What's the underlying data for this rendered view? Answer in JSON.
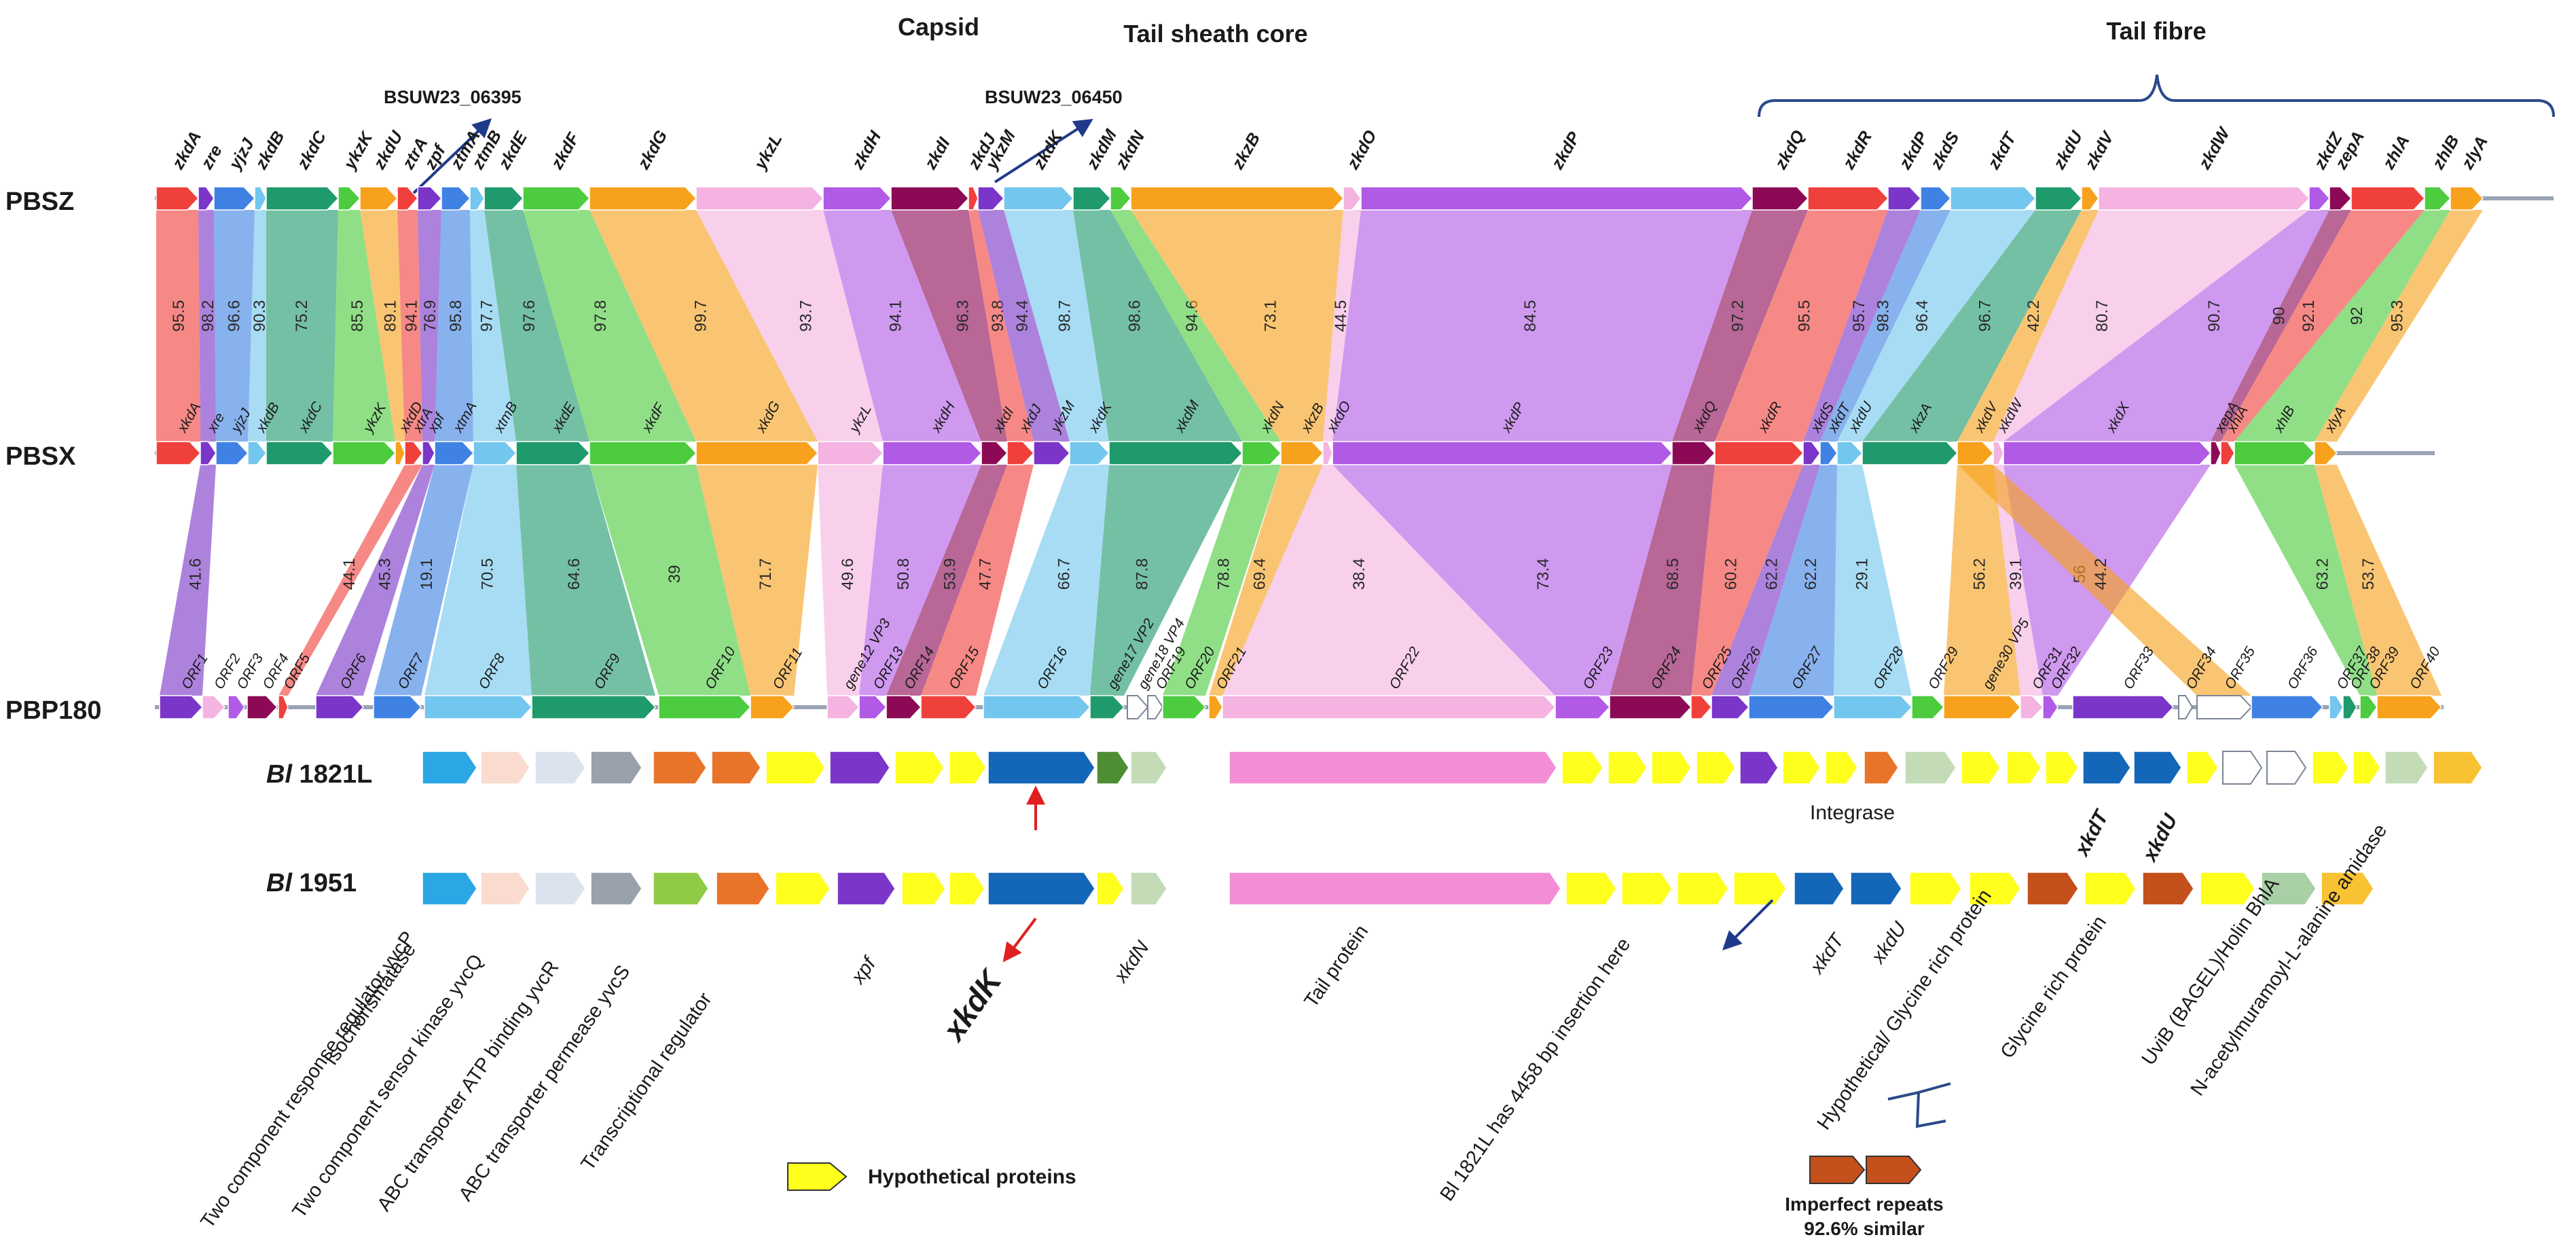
{
  "headers": {
    "capsid": "Capsid",
    "tail_sheath": "Tail sheath core",
    "tail_fibre": "Tail fibre"
  },
  "callouts": {
    "bsuw_a": "BSUW23_06395",
    "bsuw_b": "BSUW23_06450"
  },
  "tracks": {
    "pbsz": "PBSZ",
    "pbsx": "PBSX",
    "pbp180": "PBP180",
    "bl1821_a": "Bl",
    "bl1821_b": " 1821L",
    "bl1951_a": "Bl",
    "bl1951_b": " 1951"
  },
  "colors": {
    "red": "#f0403c",
    "purple": "#7b35c8",
    "lblue": "#73c6ee",
    "blue": "#3f82e4",
    "teal": "#1f9a6c",
    "green": "#4ccc3e",
    "orange": "#f7a11c",
    "lpink": "#f4b3e0",
    "violet": "#b15ae6",
    "maroon": "#8c0a55",
    "pink": "#f38ed6",
    "navy": "#1466b8",
    "yellow": "#ffff1e",
    "cyan": "#2aa7e4",
    "peach": "#f9dccf",
    "lgrey": "#dde3ee",
    "grey": "#99a1ab",
    "dorange": "#e8742a",
    "lime": "#8fcc46",
    "brown": "#c4501c",
    "sage": "#c3dcb7",
    "dkgreen": "#4e8e32",
    "gold": "#f8c232",
    "mint": "#a9cfa6",
    "white": "#ffffff"
  },
  "pbsz_genes": [
    {
      "n": "zkdA",
      "c": "red"
    },
    {
      "n": "zre",
      "c": "purple"
    },
    {
      "n": "yjzJ",
      "c": "blue"
    },
    {
      "n": "zkdB",
      "c": "lblue"
    },
    {
      "n": "zkdC",
      "c": "teal"
    },
    {
      "n": "ykzK",
      "c": "green"
    },
    {
      "n": "zkdU",
      "c": "orange"
    },
    {
      "n": "ztrA",
      "c": "red"
    },
    {
      "n": "zpf",
      "c": "purple"
    },
    {
      "n": "ztmA",
      "c": "blue"
    },
    {
      "n": "ztmB",
      "c": "lblue"
    },
    {
      "n": "zkdE",
      "c": "teal"
    },
    {
      "n": "zkdF",
      "c": "green"
    },
    {
      "n": "zkdG",
      "c": "orange"
    },
    {
      "n": "ykzL",
      "c": "lpink"
    },
    {
      "n": "zkdH",
      "c": "violet"
    },
    {
      "n": "zkdI",
      "c": "maroon"
    },
    {
      "n": "zkdJ",
      "c": "red"
    },
    {
      "n": "ykzM",
      "c": "purple"
    },
    {
      "n": "zkdK",
      "c": "lblue"
    },
    {
      "n": "zkdM",
      "c": "teal"
    },
    {
      "n": "zkdN",
      "c": "green"
    },
    {
      "n": "zkzB",
      "c": "orange"
    },
    {
      "n": "zkdO",
      "c": "lpink"
    },
    {
      "n": "zkdP",
      "c": "violet"
    },
    {
      "n": "zkdQ",
      "c": "maroon"
    },
    {
      "n": "zkdR",
      "c": "red"
    },
    {
      "n": "zkdP",
      "c": "purple"
    },
    {
      "n": "zkdS",
      "c": "blue"
    },
    {
      "n": "zkdT",
      "c": "lblue"
    },
    {
      "n": "zkdU",
      "c": "teal"
    },
    {
      "n": "zkdV",
      "c": "orange"
    },
    {
      "n": "zkdW",
      "c": "lpink"
    },
    {
      "n": "zkdZ",
      "c": "violet"
    },
    {
      "n": "zepA",
      "c": "maroon"
    },
    {
      "n": "zhlA",
      "c": "red"
    },
    {
      "n": "zhlB",
      "c": "green"
    },
    {
      "n": "zlyA",
      "c": "orange"
    }
  ],
  "pbsx_genes": [
    {
      "n": "xkdA",
      "c": "red"
    },
    {
      "n": "xre",
      "c": "purple"
    },
    {
      "n": "yjzJ",
      "c": "blue"
    },
    {
      "n": "xkdB",
      "c": "lblue"
    },
    {
      "n": "xkdC",
      "c": "teal"
    },
    {
      "n": "ykzK",
      "c": "green"
    },
    {
      "n": "xkdD",
      "c": "orange"
    },
    {
      "n": "xtrA",
      "c": "red"
    },
    {
      "n": "xpf",
      "c": "purple"
    },
    {
      "n": "xtmA",
      "c": "blue"
    },
    {
      "n": "xtmB",
      "c": "lblue"
    },
    {
      "n": "xkdE",
      "c": "teal"
    },
    {
      "n": "xkdF",
      "c": "green"
    },
    {
      "n": "xkdG",
      "c": "orange"
    },
    {
      "n": "ykzL",
      "c": "lpink"
    },
    {
      "n": "xkdH",
      "c": "violet"
    },
    {
      "n": "xkdI",
      "c": "maroon"
    },
    {
      "n": "xkdJ",
      "c": "red"
    },
    {
      "n": "ykzM",
      "c": "purple"
    },
    {
      "n": "xkdK",
      "c": "lblue"
    },
    {
      "n": "xkdM",
      "c": "teal"
    },
    {
      "n": "xkdN",
      "c": "green"
    },
    {
      "n": "xkzB",
      "c": "orange"
    },
    {
      "n": "xkdO",
      "c": "lpink"
    },
    {
      "n": "xkdP",
      "c": "violet"
    },
    {
      "n": "xkdQ",
      "c": "maroon"
    },
    {
      "n": "xkdR",
      "c": "red"
    },
    {
      "n": "xkdS",
      "c": "purple"
    },
    {
      "n": "xkdT",
      "c": "blue"
    },
    {
      "n": "xkdU",
      "c": "lblue"
    },
    {
      "n": "xkzA",
      "c": "teal"
    },
    {
      "n": "xkdV",
      "c": "orange"
    },
    {
      "n": "xkdW",
      "c": "lpink"
    },
    {
      "n": "xkdX",
      "c": "violet"
    },
    {
      "n": "xepA",
      "c": "maroon"
    },
    {
      "n": "xhlA",
      "c": "red"
    },
    {
      "n": "xhlB",
      "c": "green"
    },
    {
      "n": "xlyA",
      "c": "orange"
    }
  ],
  "pbp_genes": [
    {
      "n": "ORF1",
      "c": "purple"
    },
    {
      "n": "ORF2",
      "c": "lpink"
    },
    {
      "n": "ORF3",
      "c": "violet"
    },
    {
      "n": "ORF4",
      "c": "maroon"
    },
    {
      "n": "ORF5",
      "c": "red"
    },
    {
      "n": "ORF6",
      "c": "purple"
    },
    {
      "n": "ORF7",
      "c": "blue"
    },
    {
      "n": "ORF8",
      "c": "lblue"
    },
    {
      "n": "ORF9",
      "c": "teal"
    },
    {
      "n": "ORF10",
      "c": "green"
    },
    {
      "n": "ORF11",
      "c": "orange"
    },
    {
      "n": "gene12 VP3",
      "c": "lpink"
    },
    {
      "n": "ORF13",
      "c": "violet"
    },
    {
      "n": "ORF14",
      "c": "maroon"
    },
    {
      "n": "ORF15",
      "c": "red"
    },
    {
      "n": "ORF16",
      "c": "lblue"
    },
    {
      "n": "gene17 VP2",
      "c": "teal"
    },
    {
      "n": "gene18 VP4",
      "c": "white"
    },
    {
      "n": "ORF19",
      "c": "white"
    },
    {
      "n": "ORF20",
      "c": "green"
    },
    {
      "n": "ORF21",
      "c": "orange"
    },
    {
      "n": "ORF22",
      "c": "lpink"
    },
    {
      "n": "ORF23",
      "c": "violet"
    },
    {
      "n": "ORF24",
      "c": "maroon"
    },
    {
      "n": "ORF25",
      "c": "red"
    },
    {
      "n": "ORF26",
      "c": "purple"
    },
    {
      "n": "ORF27",
      "c": "blue"
    },
    {
      "n": "ORF28",
      "c": "lblue"
    },
    {
      "n": "ORF29",
      "c": "green"
    },
    {
      "n": "gene30 VP5",
      "c": "orange"
    },
    {
      "n": "ORF31",
      "c": "lpink"
    },
    {
      "n": "ORF32",
      "c": "violet"
    },
    {
      "n": "ORF33",
      "c": "purple"
    },
    {
      "n": "ORF34",
      "c": "white"
    },
    {
      "n": "ORF35",
      "c": "white"
    },
    {
      "n": "ORF36",
      "c": "blue"
    },
    {
      "n": "ORF37",
      "c": "lblue"
    },
    {
      "n": "ORF38",
      "c": "teal"
    },
    {
      "n": "ORF39",
      "c": "green"
    },
    {
      "n": "ORF40",
      "c": "orange"
    }
  ],
  "links_top": [
    {
      "v": "95.5",
      "c": "red"
    },
    {
      "v": "98.2",
      "c": "purple"
    },
    {
      "v": "96.6",
      "c": "blue"
    },
    {
      "v": "90.3",
      "c": "lblue"
    },
    {
      "v": "75.2",
      "c": "teal"
    },
    {
      "v": "85.5",
      "c": "green"
    },
    {
      "v": "89.1",
      "c": "orange"
    },
    {
      "v": "94.1",
      "c": "red"
    },
    {
      "v": "76.9",
      "c": "purple"
    },
    {
      "v": "95.8",
      "c": "blue"
    },
    {
      "v": "97.7",
      "c": "lblue"
    },
    {
      "v": "97.6",
      "c": "teal"
    },
    {
      "v": "97.8",
      "c": "green"
    },
    {
      "v": "99.7",
      "c": "orange"
    },
    {
      "v": "93.7",
      "c": "lpink"
    },
    {
      "v": "94.1",
      "c": "violet"
    },
    {
      "v": "96.3",
      "c": "maroon"
    },
    {
      "v": "93.8",
      "c": "red"
    },
    {
      "v": "94.4",
      "c": "purple"
    },
    {
      "v": "98.7",
      "c": "lblue"
    },
    {
      "v": "98.6",
      "c": "teal"
    },
    {
      "v": "94.6",
      "c": "green"
    },
    {
      "v": "73.1",
      "c": "orange"
    },
    {
      "v": "44.5",
      "c": "lpink"
    },
    {
      "v": "84.5",
      "c": "violet"
    },
    {
      "v": "97.2",
      "c": "maroon"
    },
    {
      "v": "95.5",
      "c": "red"
    },
    {
      "v": "95.7",
      "c": "purple"
    },
    {
      "v": "98.3",
      "c": "blue"
    },
    {
      "v": "96.4",
      "c": "lblue"
    },
    {
      "v": "96.7",
      "c": "teal"
    },
    {
      "v": "42.2",
      "c": "orange"
    },
    {
      "v": "80.7",
      "c": "lpink"
    },
    {
      "v": "90.7",
      "c": "violet"
    },
    {
      "v": "90",
      "c": "maroon"
    },
    {
      "v": "92.1",
      "c": "red"
    },
    {
      "v": "92",
      "c": "green"
    },
    {
      "v": "95.3",
      "c": "orange"
    }
  ],
  "links_bottom": [
    {
      "v": "41.6",
      "c": "purple"
    },
    {
      "v": "44.1",
      "c": "red"
    },
    {
      "v": "45.3",
      "c": "purple"
    },
    {
      "v": "19.1",
      "c": "blue"
    },
    {
      "v": "70.5",
      "c": "lblue"
    },
    {
      "v": "64.6",
      "c": "teal"
    },
    {
      "v": "39",
      "c": "green"
    },
    {
      "v": "71.7",
      "c": "orange"
    },
    {
      "v": "49.6",
      "c": "lpink"
    },
    {
      "v": "50.8",
      "c": "violet"
    },
    {
      "v": "53.9",
      "c": "maroon"
    },
    {
      "v": "47.7",
      "c": "red"
    },
    {
      "v": "66.7",
      "c": "lblue"
    },
    {
      "v": "87.8",
      "c": "teal"
    },
    {
      "v": "78.8",
      "c": "green"
    },
    {
      "v": "69.4",
      "c": "orange"
    },
    {
      "v": "38.4",
      "c": "lpink"
    },
    {
      "v": "73.4",
      "c": "violet"
    },
    {
      "v": "68.5",
      "c": "maroon"
    },
    {
      "v": "60.2",
      "c": "red"
    },
    {
      "v": "62.2",
      "c": "purple"
    },
    {
      "v": "62.2",
      "c": "blue"
    },
    {
      "v": "29.1",
      "c": "lblue"
    },
    {
      "v": "56.2",
      "c": "orange"
    },
    {
      "v": "39.1",
      "c": "lpink"
    },
    {
      "v": "56",
      "c": "violet"
    },
    {
      "v": "44.2",
      "c": "orange"
    },
    {
      "v": "63.2",
      "c": "green"
    },
    {
      "v": "53.7",
      "c": "orange"
    }
  ],
  "bl1821_genes": [
    {
      "c": "cyan"
    },
    {
      "c": "peach"
    },
    {
      "c": "lgrey"
    },
    {
      "c": "grey"
    },
    {
      "c": "dorange"
    },
    {
      "c": "dorange"
    },
    {
      "c": "yellow"
    },
    {
      "c": "purple"
    },
    {
      "c": "yellow"
    },
    {
      "c": "yellow"
    },
    {
      "c": "navy"
    },
    {
      "c": "dkgreen"
    },
    {
      "c": "sage"
    },
    {
      "c": "pink"
    },
    {
      "c": "yellow"
    },
    {
      "c": "yellow"
    },
    {
      "c": "yellow"
    },
    {
      "c": "yellow"
    },
    {
      "c": "purple"
    },
    {
      "c": "yellow"
    },
    {
      "c": "yellow"
    },
    {
      "c": "dorange"
    },
    {
      "c": "sage"
    },
    {
      "c": "yellow"
    },
    {
      "c": "yellow"
    },
    {
      "c": "yellow"
    },
    {
      "c": "navy"
    },
    {
      "c": "navy"
    },
    {
      "c": "yellow"
    },
    {
      "c": "white"
    },
    {
      "c": "white"
    },
    {
      "c": "yellow"
    },
    {
      "c": "yellow"
    },
    {
      "c": "sage"
    },
    {
      "c": "gold"
    }
  ],
  "bl1951_genes": [
    {
      "c": "cyan"
    },
    {
      "c": "peach"
    },
    {
      "c": "lgrey"
    },
    {
      "c": "grey"
    },
    {
      "c": "lime"
    },
    {
      "c": "dorange"
    },
    {
      "c": "yellow"
    },
    {
      "c": "purple"
    },
    {
      "c": "yellow"
    },
    {
      "c": "yellow"
    },
    {
      "c": "navy"
    },
    {
      "c": "yellow"
    },
    {
      "c": "sage"
    },
    {
      "c": "pink"
    },
    {
      "c": "yellow"
    },
    {
      "c": "yellow"
    },
    {
      "c": "yellow"
    },
    {
      "c": "yellow"
    },
    {
      "c": "navy"
    },
    {
      "c": "navy"
    },
    {
      "c": "yellow"
    },
    {
      "c": "yellow"
    },
    {
      "c": "brown"
    },
    {
      "c": "yellow"
    },
    {
      "c": "brown"
    },
    {
      "c": "yellow"
    },
    {
      "c": "mint"
    },
    {
      "c": "gold"
    }
  ],
  "annotations": {
    "integrase": "Integrase",
    "xkdT_a": "xkdT",
    "xkdU_a": "xkdU",
    "xkdT_b": "xkdT",
    "xkdU_b": "xkdU",
    "xpf": "xpf",
    "xkdK": "xkdK",
    "xkdN": "xkdN",
    "tail_protein": "Tail protein",
    "isochorismatase": "Isochorismatase",
    "tcrr": "Two component response regulator yvcP",
    "tcsk": "Two component sensor kinase yvcQ",
    "abcatp": "ABC transporter ATP binding yvcR",
    "abcperm": "ABC transporter permease yvcS",
    "transreg": "Transcriptional regulator",
    "insertion": "Bl 1821L has 4458 bp insertion here",
    "hypoglycine": "Hypothetical/ Glycine rich protein",
    "glycine": "Glycine rich protein",
    "uvib": "UviB (BAGEL)/Holin BhlA",
    "amidase": "N-acetylmuramoyl-L-alanine amidase",
    "hypothetical": "Hypothetical proteins",
    "repeats1": "Imperfect repeats",
    "repeats2": "92.6% similar"
  }
}
